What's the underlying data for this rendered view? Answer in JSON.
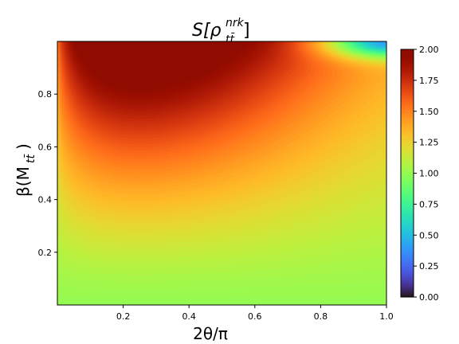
{
  "chart_data": {
    "type": "heatmap",
    "title": "S[ρ",
    "title_sub": "tt̄",
    "title_sup": "nrk",
    "title_close": "]",
    "xlabel": "2θ/π",
    "ylabel": "β(M",
    "ylabel_sub": "tt̄",
    "ylabel_close": ")",
    "xlim": [
      0.0,
      1.0
    ],
    "ylim": [
      0.0,
      1.0
    ],
    "xticks": [
      "0.2",
      "0.4",
      "0.6",
      "0.8",
      "1.0"
    ],
    "xtick_values": [
      0.2,
      0.4,
      0.6,
      0.8,
      1.0
    ],
    "yticks": [
      "0.2",
      "0.4",
      "0.6",
      "0.8"
    ],
    "ytick_values": [
      0.2,
      0.4,
      0.6,
      0.8
    ],
    "colorbar": {
      "min": 0.0,
      "max": 2.0,
      "ticks": [
        "0.00",
        "0.25",
        "0.50",
        "0.75",
        "1.00",
        "1.25",
        "1.50",
        "1.75",
        "2.00"
      ],
      "tick_values": [
        0.0,
        0.25,
        0.5,
        0.75,
        1.0,
        1.25,
        1.5,
        1.75,
        2.0
      ],
      "colormap": "turbo"
    },
    "field_description": {
      "value_at_beta_0": 1.0,
      "max_value": 2.0,
      "max_location": {
        "x": 0.3,
        "y": 0.9
      },
      "low_region": {
        "x": 1.0,
        "y": 1.0,
        "value": 0.3
      },
      "notable_points": [
        {
          "x": 0.0,
          "y": 0.1,
          "value": 1.0
        },
        {
          "x": 0.0,
          "y": 0.5,
          "value": 1.35
        },
        {
          "x": 0.0,
          "y": 0.8,
          "value": 1.45
        },
        {
          "x": 0.3,
          "y": 0.9,
          "value": 2.0
        },
        {
          "x": 0.5,
          "y": 0.6,
          "value": 1.7
        },
        {
          "x": 0.8,
          "y": 0.6,
          "value": 1.6
        },
        {
          "x": 1.0,
          "y": 0.9,
          "value": 1.1
        },
        {
          "x": 1.0,
          "y": 1.0,
          "value": 0.3
        }
      ]
    }
  }
}
